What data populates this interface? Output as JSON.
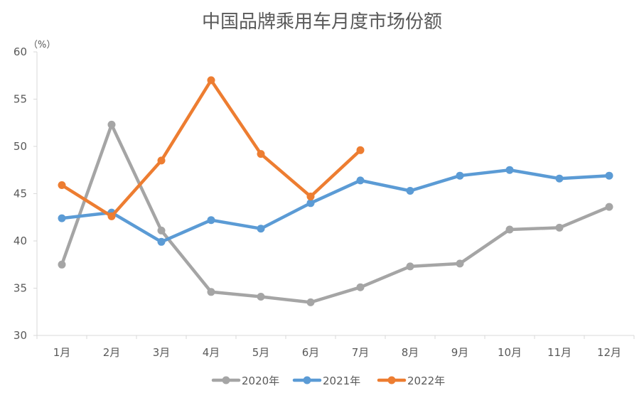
{
  "chart_data": {
    "type": "line",
    "title": "中国品牌乘用车月度市场份额",
    "ylabel": "（%）",
    "xlabel": "",
    "ylim": [
      30,
      60
    ],
    "yticks": [
      30,
      35,
      40,
      45,
      50,
      55,
      60
    ],
    "categories": [
      "1月",
      "2月",
      "3月",
      "4月",
      "5月",
      "6月",
      "7月",
      "8月",
      "9月",
      "10月",
      "11月",
      "12月"
    ],
    "grid": false,
    "legend_position": "bottom",
    "series": [
      {
        "name": "2020年",
        "color": "#A5A5A5",
        "values": [
          37.5,
          52.3,
          41.1,
          34.6,
          34.1,
          33.5,
          35.1,
          37.3,
          37.6,
          41.2,
          41.4,
          43.6
        ]
      },
      {
        "name": "2021年",
        "color": "#5B9BD5",
        "values": [
          42.4,
          43.0,
          39.9,
          42.2,
          41.3,
          44.0,
          46.4,
          45.3,
          46.9,
          47.5,
          46.6,
          46.9
        ]
      },
      {
        "name": "2022年",
        "color": "#ED7D31",
        "values": [
          45.9,
          42.6,
          48.5,
          57.0,
          49.2,
          44.7,
          49.6,
          null,
          null,
          null,
          null,
          null
        ]
      }
    ]
  }
}
